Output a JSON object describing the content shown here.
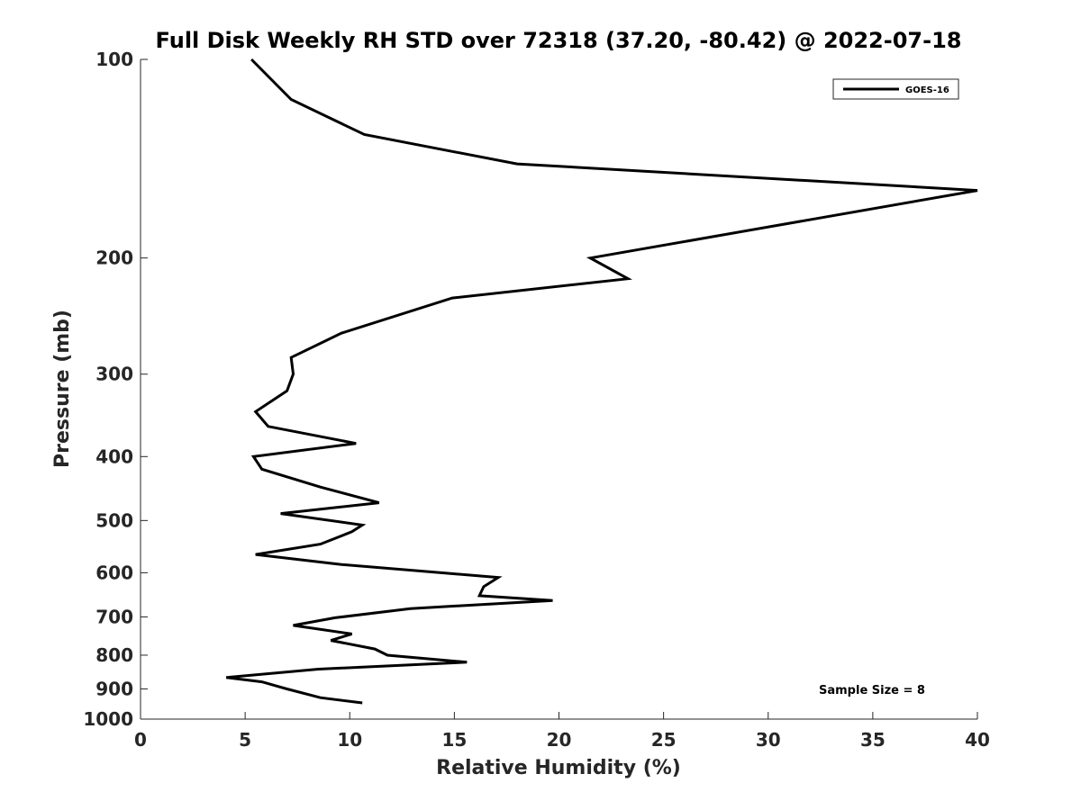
{
  "chart_data": {
    "type": "line",
    "title": "Full Disk Weekly RH STD over 72318 (37.20, -80.42) @ 2022-07-18",
    "xlabel": "Relative Humidity (%)",
    "ylabel": "Pressure (mb)",
    "xlim": [
      0,
      40
    ],
    "ylim": [
      100,
      1000
    ],
    "yscale": "log",
    "yreversed": true,
    "grid": false,
    "legend_position": "top-right",
    "x_ticks": [
      "0",
      "5",
      "10",
      "15",
      "20",
      "25",
      "30",
      "35",
      "40"
    ],
    "y_ticks": [
      {
        "value": 100,
        "label": "100"
      },
      {
        "value": 200,
        "label": "200"
      },
      {
        "value": 300,
        "label": "300"
      },
      {
        "value": 400,
        "label": "400"
      },
      {
        "value": 500,
        "label": "500"
      },
      {
        "value": 600,
        "label": "600"
      },
      {
        "value": 700,
        "label": "700"
      },
      {
        "value": 800,
        "label": "800"
      },
      {
        "value": 900,
        "label": "900"
      },
      {
        "value": 1000,
        "label": "1000"
      }
    ],
    "series": [
      {
        "name": "GOES-16",
        "color": "#000000",
        "x": [
          5.3,
          7.2,
          10.7,
          18.0,
          40.0,
          21.5,
          23.3,
          14.9,
          9.6,
          7.2,
          7.3,
          7.0,
          5.5,
          6.1,
          10.3,
          5.4,
          5.8,
          8.6,
          11.4,
          6.7,
          10.6,
          10.1,
          8.6,
          5.5,
          9.6,
          17.1,
          16.4,
          16.2,
          19.7,
          12.9,
          9.3,
          7.3,
          10.1,
          9.1,
          11.2,
          11.8,
          15.6,
          8.5,
          4.1,
          5.8,
          7.0,
          8.6,
          10.6
        ],
        "y": [
          100,
          115,
          130,
          144,
          158,
          200,
          215,
          230,
          260,
          283,
          300,
          318,
          342,
          360,
          382,
          400,
          418,
          445,
          470,
          488,
          508,
          520,
          543,
          563,
          583,
          610,
          630,
          650,
          661,
          680,
          702,
          721,
          743,
          760,
          783,
          800,
          820,
          840,
          865,
          878,
          900,
          928,
          945
        ]
      }
    ],
    "annotation": "Sample Size = 8"
  }
}
